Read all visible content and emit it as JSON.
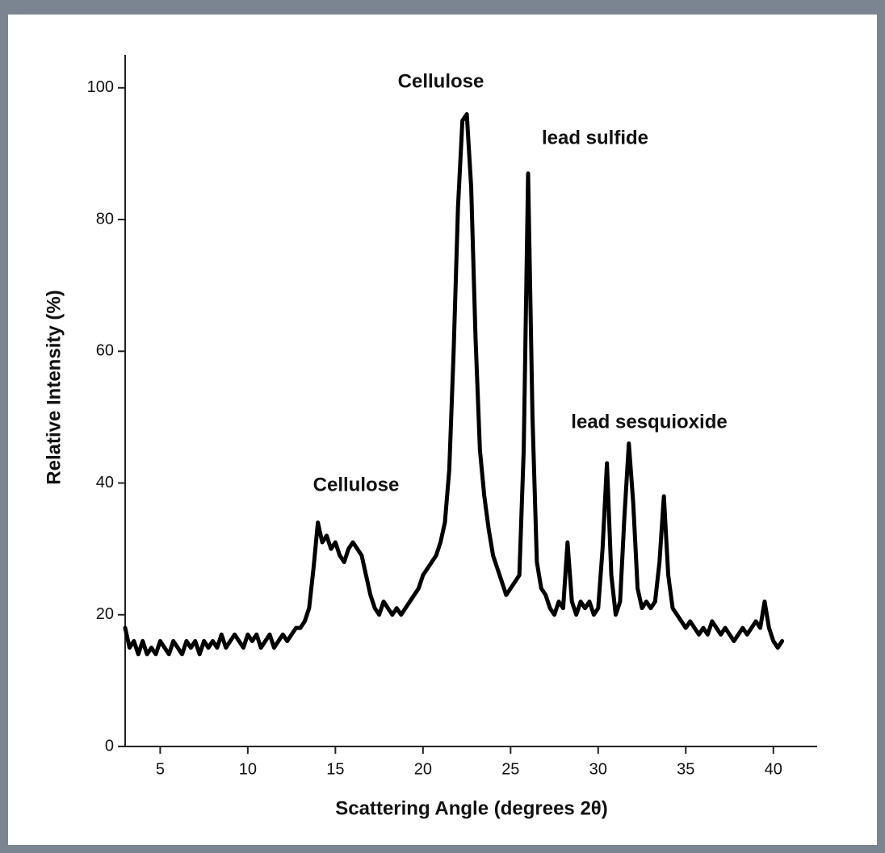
{
  "chart_data": {
    "type": "line",
    "xlabel": "Scattering Angle (degrees 2θ)",
    "ylabel": "Relative Intensity (%)",
    "annotations": [
      "Cellulose",
      "Cellulose",
      "lead sulfide",
      "lead sesquioxide"
    ],
    "color": "#000000",
    "x": [
      3.0,
      3.25,
      3.5,
      3.75,
      4.0,
      4.25,
      4.5,
      4.75,
      5.0,
      5.25,
      5.5,
      5.75,
      6.0,
      6.25,
      6.5,
      6.75,
      7.0,
      7.25,
      7.5,
      7.75,
      8.0,
      8.25,
      8.5,
      8.75,
      9.0,
      9.25,
      9.5,
      9.75,
      10.0,
      10.25,
      10.5,
      10.75,
      11.0,
      11.25,
      11.5,
      11.75,
      12.0,
      12.25,
      12.5,
      12.75,
      13.0,
      13.25,
      13.5,
      13.75,
      14.0,
      14.25,
      14.5,
      14.75,
      15.0,
      15.25,
      15.5,
      15.75,
      16.0,
      16.25,
      16.5,
      16.75,
      17.0,
      17.25,
      17.5,
      17.75,
      18.0,
      18.25,
      18.5,
      18.75,
      19.0,
      19.25,
      19.5,
      19.75,
      20.0,
      20.25,
      20.5,
      20.75,
      21.0,
      21.25,
      21.5,
      21.75,
      22.0,
      22.25,
      22.5,
      22.75,
      23.0,
      23.25,
      23.5,
      23.75,
      24.0,
      24.25,
      24.5,
      24.75,
      25.0,
      25.25,
      25.5,
      25.75,
      26.0,
      26.25,
      26.5,
      26.75,
      27.0,
      27.25,
      27.5,
      27.75,
      28.0,
      28.25,
      28.5,
      28.75,
      29.0,
      29.25,
      29.5,
      29.75,
      30.0,
      30.25,
      30.5,
      30.75,
      31.0,
      31.25,
      31.5,
      31.75,
      32.0,
      32.25,
      32.5,
      32.75,
      33.0,
      33.25,
      33.5,
      33.75,
      34.0,
      34.25,
      34.5,
      34.75,
      35.0,
      35.25,
      35.5,
      35.75,
      36.0,
      36.25,
      36.5,
      36.75,
      37.0,
      37.25,
      37.5,
      37.75,
      38.0,
      38.25,
      38.5,
      38.75,
      39.0,
      39.25,
      39.5,
      39.75,
      40.0,
      40.25,
      40.5
    ],
    "values": [
      18,
      15,
      16,
      14,
      16,
      14,
      15,
      14,
      16,
      15,
      14,
      16,
      15,
      14,
      16,
      15,
      16,
      14,
      16,
      15,
      16,
      15,
      17,
      15,
      16,
      17,
      16,
      15,
      17,
      16,
      17,
      15,
      16,
      17,
      15,
      16,
      17,
      16,
      17,
      18,
      18,
      19,
      21,
      27,
      34,
      31,
      32,
      30,
      31,
      29,
      28,
      30,
      31,
      30,
      29,
      26,
      23,
      21,
      20,
      22,
      21,
      20,
      21,
      20,
      21,
      22,
      23,
      24,
      26,
      27,
      28,
      29,
      31,
      34,
      42,
      60,
      82,
      95,
      96,
      85,
      62,
      45,
      38,
      33,
      29,
      27,
      25,
      23,
      24,
      25,
      26,
      45,
      87,
      50,
      28,
      24,
      23,
      21,
      20,
      22,
      21,
      31,
      22,
      20,
      22,
      21,
      22,
      20,
      21,
      30,
      43,
      26,
      20,
      22,
      35,
      46,
      37,
      24,
      21,
      22,
      21,
      22,
      28,
      38,
      26,
      21,
      20,
      19,
      18,
      19,
      18,
      17,
      18,
      17,
      19,
      18,
      17,
      18,
      17,
      16,
      17,
      18,
      17,
      18,
      19,
      18,
      22,
      18,
      16,
      15,
      16
    ],
    "xlim": [
      3,
      42.5
    ],
    "ylim": [
      0,
      105
    ],
    "xticks": [
      5,
      10,
      15,
      20,
      25,
      30,
      35,
      40
    ],
    "yticks": [
      0,
      20,
      40,
      60,
      80,
      100
    ],
    "grid": false
  }
}
